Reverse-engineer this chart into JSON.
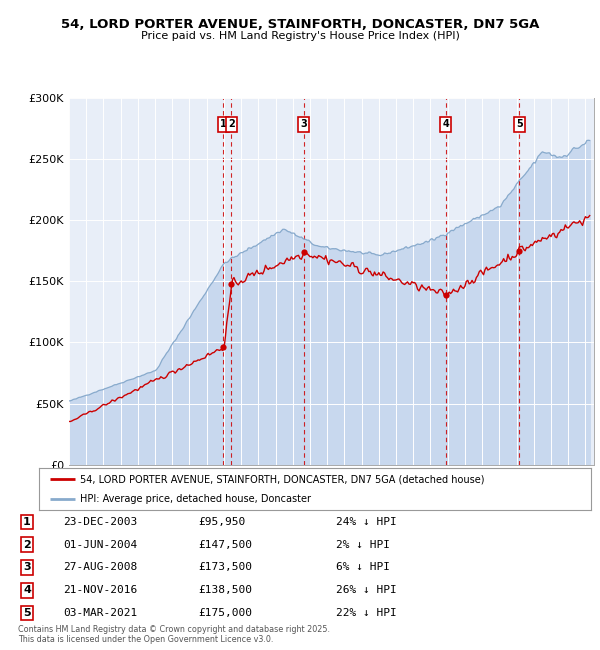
{
  "title": "54, LORD PORTER AVENUE, STAINFORTH, DONCASTER, DN7 5GA",
  "subtitle": "Price paid vs. HM Land Registry's House Price Index (HPI)",
  "legend_line1": "54, LORD PORTER AVENUE, STAINFORTH, DONCASTER, DN7 5GA (detached house)",
  "legend_line2": "HPI: Average price, detached house, Doncaster",
  "red_color": "#cc0000",
  "blue_color": "#88aacc",
  "chart_bg": "#e8eef8",
  "ylim": [
    0,
    300000
  ],
  "yticks": [
    0,
    50000,
    100000,
    150000,
    200000,
    250000,
    300000
  ],
  "ytick_labels": [
    "£0",
    "£50K",
    "£100K",
    "£150K",
    "£200K",
    "£250K",
    "£300K"
  ],
  "xlim_start": 1995.0,
  "xlim_end": 2025.5,
  "sale_events": [
    {
      "num": 1,
      "date": "23-DEC-2003",
      "price": 95950,
      "pct": "24%",
      "x_year": 2003.97,
      "price_val": 95950
    },
    {
      "num": 2,
      "date": "01-JUN-2004",
      "price": 147500,
      "pct": "2%",
      "x_year": 2004.42,
      "price_val": 147500
    },
    {
      "num": 3,
      "date": "27-AUG-2008",
      "price": 173500,
      "pct": "6%",
      "x_year": 2008.65,
      "price_val": 173500
    },
    {
      "num": 4,
      "date": "21-NOV-2016",
      "price": 138500,
      "pct": "26%",
      "x_year": 2016.89,
      "price_val": 138500
    },
    {
      "num": 5,
      "date": "03-MAR-2021",
      "price": 175000,
      "pct": "22%",
      "x_year": 2021.17,
      "price_val": 175000
    }
  ],
  "footnote1": "Contains HM Land Registry data © Crown copyright and database right 2025.",
  "footnote2": "This data is licensed under the Open Government Licence v3.0."
}
